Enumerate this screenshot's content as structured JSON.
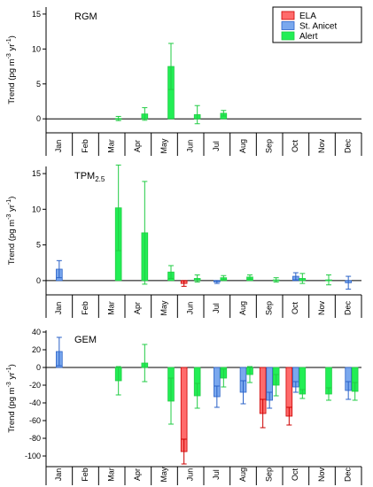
{
  "figure": {
    "width": 421,
    "height": 550
  },
  "colors": {
    "ELA": "#ff6b6b",
    "ELA_edge": "#cc0000",
    "St. Anicet": "#7aa8ee",
    "St. Anicet_edge": "#2a62c8",
    "Alert": "#22ee55",
    "Alert_edge": "#22cc44"
  },
  "legend": {
    "items": [
      {
        "name": "ELA",
        "color_key": "ELA"
      },
      {
        "name": "St. Anicet",
        "color_key": "St. Anicet"
      },
      {
        "name": "Alert",
        "color_key": "Alert"
      }
    ],
    "placement": "top-right of first panel"
  },
  "months": [
    "Jan",
    "Feb",
    "Mar",
    "Apr",
    "May",
    "Jun",
    "Jul",
    "Aug",
    "Sep",
    "Oct",
    "Nov",
    "Dec"
  ],
  "chart_data": [
    {
      "type": "bar",
      "title": "RGM",
      "title_sub": "",
      "ylabel": "Trend (pg m",
      "ylabel_unit": "-3",
      "ylabel_tail": " yr",
      "ylabel_tail_unit": "-1",
      "ylabel_close": ")",
      "ylim": [
        -2,
        16
      ],
      "yticks": [
        0,
        5,
        10,
        15
      ],
      "series": [
        {
          "name": "ELA",
          "values": [
            null,
            null,
            null,
            null,
            null,
            null,
            null,
            null,
            null,
            null,
            null,
            null
          ],
          "errors": [
            null,
            null,
            null,
            null,
            null,
            null,
            null,
            null,
            null,
            null,
            null,
            null
          ]
        },
        {
          "name": "St. Anicet",
          "values": [
            null,
            null,
            null,
            null,
            null,
            null,
            null,
            null,
            null,
            null,
            null,
            null
          ],
          "errors": [
            null,
            null,
            null,
            null,
            null,
            null,
            null,
            null,
            null,
            null,
            null,
            null
          ]
        },
        {
          "name": "Alert",
          "values": [
            null,
            null,
            0.05,
            0.7,
            7.5,
            0.6,
            0.8,
            null,
            null,
            null,
            null,
            null
          ],
          "errors": [
            null,
            null,
            0.3,
            0.9,
            3.3,
            1.3,
            0.4,
            null,
            null,
            null,
            null,
            null
          ]
        }
      ]
    },
    {
      "type": "bar",
      "title": "TPM",
      "title_sub": "2.5",
      "ylabel": "Trend (pg m",
      "ylabel_unit": "-3",
      "ylabel_tail": " yr",
      "ylabel_tail_unit": "-1",
      "ylabel_close": ")",
      "ylim": [
        -2,
        16
      ],
      "yticks": [
        0,
        5,
        10,
        15
      ],
      "series": [
        {
          "name": "ELA",
          "values": [
            null,
            null,
            null,
            null,
            null,
            -0.4,
            null,
            null,
            null,
            null,
            null,
            null
          ],
          "errors": [
            null,
            null,
            null,
            null,
            null,
            0.4,
            null,
            null,
            null,
            null,
            null,
            null
          ]
        },
        {
          "name": "St. Anicet",
          "values": [
            1.6,
            null,
            null,
            null,
            null,
            null,
            -0.2,
            null,
            null,
            0.6,
            null,
            -0.3
          ],
          "errors": [
            1.2,
            null,
            null,
            null,
            null,
            null,
            0.2,
            null,
            null,
            0.5,
            null,
            0.9
          ]
        },
        {
          "name": "Alert",
          "values": [
            null,
            null,
            10.2,
            6.7,
            1.2,
            0.3,
            0.4,
            0.5,
            0.1,
            0.3,
            0.1,
            null
          ],
          "errors": [
            null,
            null,
            6.0,
            7.2,
            0.9,
            0.5,
            0.3,
            0.3,
            0.3,
            0.7,
            0.7,
            null
          ]
        }
      ]
    },
    {
      "type": "bar",
      "title": "GEM",
      "title_sub": "",
      "ylabel": "Trend (pg m",
      "ylabel_unit": "-3",
      "ylabel_tail": " yr",
      "ylabel_tail_unit": "-1",
      "ylabel_close": ")",
      "ylim": [
        -112,
        42
      ],
      "yticks": [
        40,
        20,
        0,
        -20,
        -40,
        -60,
        -80,
        -100
      ],
      "series": [
        {
          "name": "ELA",
          "values": [
            null,
            null,
            null,
            null,
            null,
            -95,
            null,
            null,
            -52,
            -55,
            null,
            null
          ],
          "errors": [
            null,
            null,
            null,
            null,
            null,
            14,
            null,
            null,
            16,
            10,
            null,
            null
          ]
        },
        {
          "name": "St. Anicet",
          "values": [
            18,
            null,
            null,
            null,
            null,
            null,
            -33,
            -28,
            -37,
            -22,
            null,
            -26
          ],
          "errors": [
            16,
            null,
            null,
            null,
            null,
            null,
            12,
            13,
            9,
            6,
            null,
            10
          ]
        },
        {
          "name": "Alert",
          "values": [
            null,
            null,
            -15,
            5,
            -38,
            -32,
            -12,
            -8,
            -20,
            -30,
            -30,
            -27
          ],
          "errors": [
            null,
            null,
            16,
            21,
            26,
            14,
            10,
            9,
            12,
            5,
            7,
            10
          ]
        }
      ]
    }
  ]
}
